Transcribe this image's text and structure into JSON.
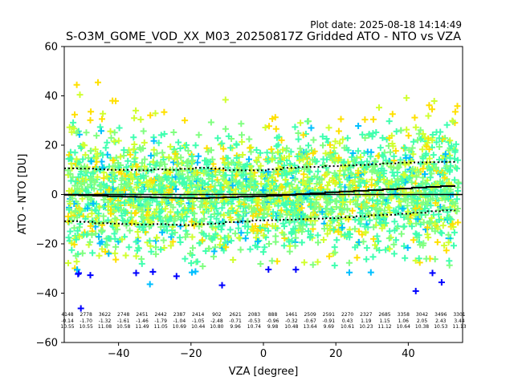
{
  "plot_date": "Plot date: 2025-08-18 14:14:49",
  "chart_data": {
    "type": "scatter",
    "title": "S-O3M_GOME_VOD_XX_M03_20250817Z Gridded ATO - NTO vs VZA",
    "xlabel": "VZA [degree]",
    "ylabel": "ATO - NTO [DU]",
    "xlim": [
      -55,
      55
    ],
    "ylim": [
      -60,
      60
    ],
    "xticks": [
      -40,
      -20,
      0,
      20,
      40
    ],
    "yticks": [
      -60,
      -40,
      -20,
      0,
      20,
      40,
      60
    ],
    "grid": false,
    "marker": "+",
    "colormap_colors": [
      "#0000ff",
      "#00bfff",
      "#40ffb0",
      "#80ff80",
      "#d0ff30",
      "#ffe000"
    ],
    "zero_line": 0,
    "bin_x": [
      -53,
      -49,
      -45,
      -41,
      -37,
      -33,
      -29,
      -25,
      -21,
      -17,
      -13,
      -9,
      -5,
      -1,
      3,
      7,
      11,
      15,
      19,
      23,
      27,
      31,
      35,
      39,
      43,
      47,
      51
    ],
    "mean_line": [
      -0.14,
      -0.3,
      -0.5,
      -0.7,
      -0.9,
      -1.0,
      -1.2,
      -1.3,
      -1.4,
      -1.5,
      -1.3,
      -1.1,
      -0.9,
      -0.7,
      -0.5,
      -0.2,
      0.2,
      0.5,
      0.9,
      1.2,
      1.5,
      1.8,
      2.1,
      2.4,
      2.8,
      3.1,
      3.4
    ],
    "upper_std_line": [
      10.6,
      10.5,
      10.2,
      10.0,
      10.0,
      9.8,
      10.2,
      10.0,
      10.4,
      10.8,
      10.5,
      9.9,
      9.8,
      9.8,
      10.2,
      10.8,
      11.1,
      11.2,
      11.5,
      11.8,
      12.0,
      12.3,
      12.6,
      12.9,
      13.0,
      13.1,
      13.2
    ],
    "lower_std_line": [
      -10.8,
      -11.1,
      -11.6,
      -11.8,
      -12.0,
      -12.2,
      -12.0,
      -12.3,
      -12.4,
      -12.0,
      -11.8,
      -11.2,
      -11.0,
      -10.5,
      -10.4,
      -10.2,
      -10.0,
      -9.8,
      -9.6,
      -9.2,
      -8.8,
      -8.4,
      -8.2,
      -7.8,
      -7.4,
      -6.8,
      -6.4
    ],
    "bin_stats": {
      "counts": [
        "4148",
        "2778",
        "3622",
        "2748",
        "2451",
        "2442",
        "2387",
        "2414",
        "902",
        "2621",
        "2083",
        "888",
        "1461",
        "2509",
        "2591",
        "2270",
        "2327",
        "2685",
        "3358",
        "3042",
        "3496",
        "3301"
      ],
      "means": [
        "-0.14",
        "-1.70",
        "-1.32",
        "-1.61",
        "-1.46",
        "-1.79",
        "-1.04",
        "-1.05",
        "-2.48",
        "-0.71",
        "-0.53",
        "-0.96",
        "-0.32",
        "-0.67",
        "-0.91",
        "0.43",
        "1.19",
        "1.15",
        "1.06",
        "2.05",
        "2.43",
        "3.44"
      ],
      "stds": [
        "10.55",
        "10.55",
        "11.08",
        "10.58",
        "11.49",
        "11.05",
        "10.69",
        "10.44",
        "10.80",
        "9.96",
        "10.74",
        "9.98",
        "10.48",
        "13.64",
        "9.69",
        "10.61",
        "10.23",
        "11.12",
        "10.64",
        "10.38",
        "10.53",
        "11.13"
      ]
    }
  }
}
